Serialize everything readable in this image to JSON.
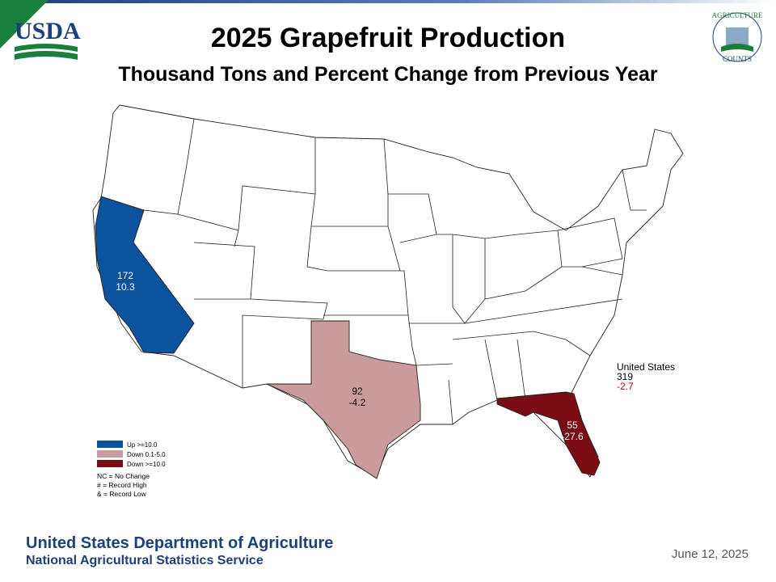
{
  "header": {
    "title": "2025 Grapefruit Production",
    "subtitle": "Thousand Tons and Percent Change from Previous Year",
    "logo_left": "USDA",
    "logo_right": [
      "AGRICULTURE",
      "COUNTS"
    ]
  },
  "map": {
    "regions": [
      {
        "value": 172,
        "change": 10.3,
        "color": "#0b539f",
        "text_color": "#ffffff"
      },
      {
        "value": 92,
        "change": -4.2,
        "color": "#c99b9d",
        "text_color": "#000000"
      },
      {
        "value": 55,
        "change": -27.6,
        "color": "#7a0c13",
        "text_color": "#ffffff"
      }
    ],
    "total": {
      "label": "United States",
      "value": 319,
      "change": -2.7
    }
  },
  "legend": {
    "items": [
      {
        "label": "Up >=10.0",
        "color": "#0b539f"
      },
      {
        "label": "Down 0.1-5.0",
        "color": "#c99b9d"
      },
      {
        "label": "Down >=10.0",
        "color": "#7a0c13"
      }
    ],
    "notes": [
      "NC = No Change",
      "# = Record High",
      "& = Record Low"
    ]
  },
  "footer": {
    "organization": "United States Department of Agriculture",
    "agency": "National Agricultural Statistics Service",
    "date": "June 12, 2025"
  }
}
